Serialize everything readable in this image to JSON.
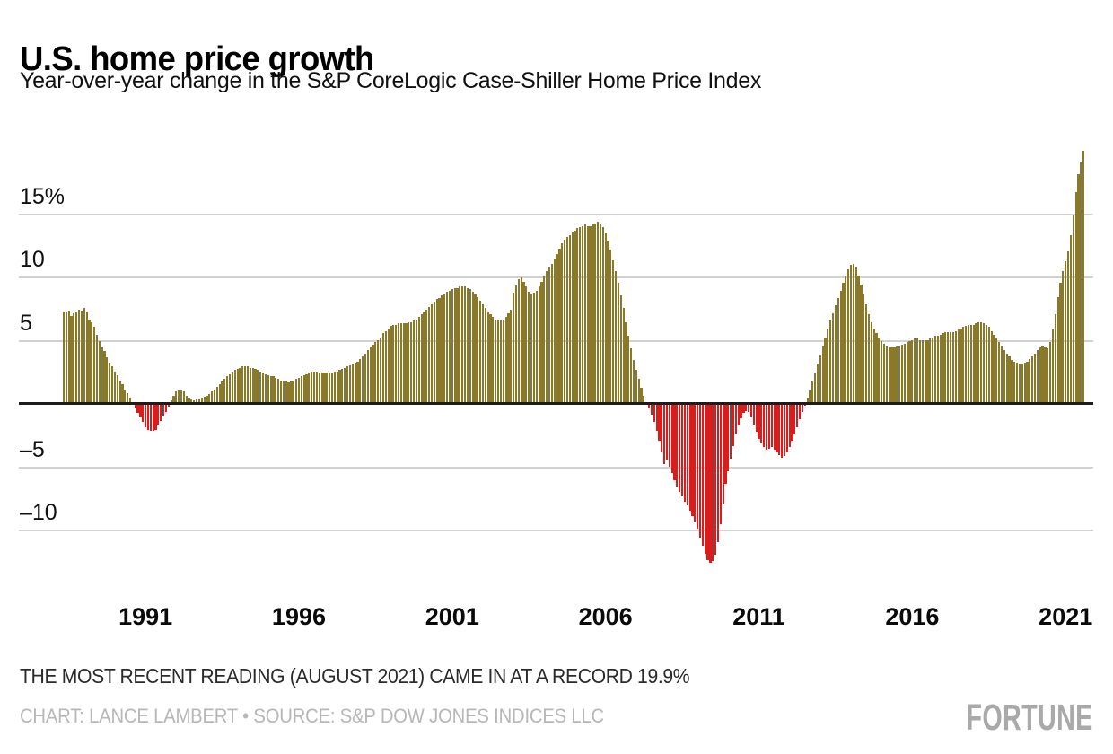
{
  "header": {
    "title": "U.S. home price growth",
    "subtitle": "Year-over-year change in the S&P CoreLogic Case-Shiller Home Price Index"
  },
  "footer": {
    "note": "THE MOST RECENT READING (AUGUST 2021) CAME IN AT A RECORD 19.9%",
    "credit": "CHART: LANCE LAMBERT • SOURCE: S&P DOW JONES INDICES LLC",
    "brand": "FORTUNE"
  },
  "colors": {
    "positive_bar": "#8a782b",
    "negative_bar": "#d91c1c",
    "grid_line": "#d2d2d2",
    "zero_line": "#1c1c1c",
    "axis_text": "#101010",
    "note_text": "#2b2b2b",
    "credit_text": "#b7b7b7",
    "brand_text": "#a9a9a9"
  },
  "chart_data": {
    "type": "bar",
    "title": "U.S. home price growth",
    "subtitle": "Year-over-year change in the S&P CoreLogic Case-Shiller Home Price Index",
    "unit": "percent, year-over-year",
    "frequency": "monthly",
    "start": "1988-05",
    "end": "2021-08",
    "latest_reading": 19.9,
    "grid": true,
    "ylim": [
      -13.5,
      20.5
    ],
    "y_ticks": [
      {
        "label": "15%",
        "value": 15
      },
      {
        "label": "10",
        "value": 10
      },
      {
        "label": "5",
        "value": 5
      },
      {
        "label": "–5",
        "value": -5
      },
      {
        "label": "–10",
        "value": -10
      }
    ],
    "x_ticks": [
      {
        "label": "1991",
        "year": 1991
      },
      {
        "label": "1996",
        "year": 1996
      },
      {
        "label": "2001",
        "year": 2001
      },
      {
        "label": "2006",
        "year": 2006
      },
      {
        "label": "2011",
        "year": 2011
      },
      {
        "label": "2016",
        "year": 2016
      },
      {
        "label": "2021",
        "year": 2021
      }
    ],
    "series": [
      {
        "year": 1988,
        "start_month": 5,
        "values": [
          7.2,
          7.2,
          7.3,
          6.9,
          7.1,
          7.2,
          7.4,
          7.3
        ]
      },
      {
        "year": 1989,
        "start_month": 1,
        "values": [
          7.5,
          7.2,
          6.6,
          6.4,
          6.0,
          5.4,
          4.9,
          4.4,
          4.1,
          3.6,
          3.2,
          2.9
        ]
      },
      {
        "year": 1990,
        "start_month": 1,
        "values": [
          2.5,
          2.2,
          1.8,
          1.5,
          1.1,
          0.8,
          0.4,
          0.1,
          -0.4,
          -0.8,
          -1.1,
          -1.5
        ]
      },
      {
        "year": 1991,
        "start_month": 1,
        "values": [
          -1.9,
          -2.1,
          -2.2,
          -2.2,
          -2.1,
          -1.7,
          -1.4,
          -1.0,
          -0.7,
          -0.3,
          0.2,
          0.6
        ]
      },
      {
        "year": 1992,
        "start_month": 1,
        "values": [
          0.9,
          1.0,
          1.0,
          0.9,
          0.6,
          0.4,
          0.3,
          0.2,
          0.3,
          0.3,
          0.4,
          0.5
        ]
      },
      {
        "year": 1993,
        "start_month": 1,
        "values": [
          0.6,
          0.7,
          0.9,
          1.1,
          1.3,
          1.5,
          1.7,
          1.9,
          2.1,
          2.3,
          2.5,
          2.6
        ]
      },
      {
        "year": 1994,
        "start_month": 1,
        "values": [
          2.7,
          2.8,
          2.9,
          2.9,
          2.9,
          2.8,
          2.8,
          2.7,
          2.6,
          2.5,
          2.4,
          2.3
        ]
      },
      {
        "year": 1995,
        "start_month": 1,
        "values": [
          2.2,
          2.1,
          2.1,
          2.0,
          1.9,
          1.8,
          1.7,
          1.7,
          1.6,
          1.7,
          1.8,
          1.9
        ]
      },
      {
        "year": 1996,
        "start_month": 1,
        "values": [
          2.0,
          2.1,
          2.2,
          2.3,
          2.4,
          2.5,
          2.5,
          2.5,
          2.4,
          2.4,
          2.4,
          2.4
        ]
      },
      {
        "year": 1997,
        "start_month": 1,
        "values": [
          2.4,
          2.4,
          2.5,
          2.5,
          2.6,
          2.7,
          2.8,
          2.9,
          3.0,
          3.1,
          3.2,
          3.3
        ]
      },
      {
        "year": 1998,
        "start_month": 1,
        "values": [
          3.5,
          3.7,
          3.9,
          4.2,
          4.4,
          4.6,
          4.8,
          5.0,
          5.2,
          5.5,
          5.7,
          5.9
        ]
      },
      {
        "year": 1999,
        "start_month": 1,
        "values": [
          6.1,
          6.2,
          6.2,
          6.3,
          6.3,
          6.3,
          6.3,
          6.4,
          6.4,
          6.5,
          6.6,
          6.8
        ]
      },
      {
        "year": 2000,
        "start_month": 1,
        "values": [
          7.0,
          7.2,
          7.4,
          7.6,
          7.8,
          8.0,
          8.2,
          8.3,
          8.5,
          8.6,
          8.8,
          8.9
        ]
      },
      {
        "year": 2001,
        "start_month": 1,
        "values": [
          9.0,
          9.1,
          9.1,
          9.2,
          9.2,
          9.2,
          9.1,
          9.0,
          8.8,
          8.6,
          8.4,
          8.1
        ]
      },
      {
        "year": 2002,
        "start_month": 1,
        "values": [
          7.8,
          7.5,
          7.2,
          7.0,
          6.8,
          6.6,
          6.5,
          6.5,
          6.6,
          6.8,
          7.1,
          7.4
        ]
      },
      {
        "year": 2003,
        "start_month": 1,
        "values": [
          8.7,
          9.3,
          9.8,
          9.9,
          9.6,
          9.2,
          8.8,
          8.6,
          8.7,
          8.9,
          9.2,
          9.6
        ]
      },
      {
        "year": 2004,
        "start_month": 1,
        "values": [
          10.0,
          10.4,
          10.7,
          11.0,
          11.4,
          11.8,
          12.2,
          12.6,
          12.9,
          13.1,
          13.3,
          13.5
        ]
      },
      {
        "year": 2005,
        "start_month": 1,
        "values": [
          13.6,
          13.8,
          13.9,
          14.0,
          14.1,
          14.0,
          14.0,
          14.1,
          14.2,
          14.3,
          14.2,
          13.9
        ]
      },
      {
        "year": 2006,
        "start_month": 1,
        "values": [
          13.4,
          12.8,
          12.1,
          11.3,
          10.4,
          9.5,
          8.5,
          7.5,
          6.4,
          5.3,
          4.3,
          3.4
        ]
      },
      {
        "year": 2007,
        "start_month": 1,
        "values": [
          2.6,
          1.9,
          1.2,
          0.6,
          0.1,
          -0.4,
          -0.9,
          -1.5,
          -2.2,
          -3.0,
          -3.9,
          -4.8
        ]
      },
      {
        "year": 2008,
        "start_month": 1,
        "values": [
          -4.5,
          -5.0,
          -5.5,
          -6.1,
          -6.6,
          -7.0,
          -7.4,
          -7.8,
          -8.1,
          -8.5,
          -8.9,
          -9.4
        ]
      },
      {
        "year": 2009,
        "start_month": 1,
        "values": [
          -9.9,
          -10.6,
          -11.3,
          -11.9,
          -12.4,
          -12.6,
          -12.5,
          -12.0,
          -11.0,
          -9.6,
          -8.0,
          -6.4
        ]
      },
      {
        "year": 2010,
        "start_month": 1,
        "values": [
          -5.4,
          -4.4,
          -3.4,
          -2.5,
          -1.8,
          -1.2,
          -0.8,
          -0.6,
          -0.7,
          -1.1,
          -1.7,
          -2.3
        ]
      },
      {
        "year": 2011,
        "start_month": 1,
        "values": [
          -2.8,
          -3.2,
          -3.5,
          -3.7,
          -3.6,
          -3.5,
          -3.7,
          -3.9,
          -4.1,
          -4.3,
          -4.2,
          -3.9
        ]
      },
      {
        "year": 2012,
        "start_month": 1,
        "values": [
          -3.5,
          -3.0,
          -2.5,
          -1.9,
          -1.3,
          -0.7,
          -0.2,
          0.4,
          1.0,
          1.7,
          2.4,
          3.1
        ]
      },
      {
        "year": 2013,
        "start_month": 1,
        "values": [
          3.8,
          4.5,
          5.2,
          5.9,
          6.5,
          7.1,
          7.7,
          8.3,
          8.9,
          9.5,
          10.1,
          10.6
        ]
      },
      {
        "year": 2014,
        "start_month": 1,
        "values": [
          10.9,
          11.0,
          10.7,
          10.1,
          9.4,
          8.6,
          7.8,
          7.0,
          6.4,
          5.9,
          5.5,
          5.2
        ]
      },
      {
        "year": 2015,
        "start_month": 1,
        "values": [
          4.9,
          4.7,
          4.5,
          4.4,
          4.4,
          4.4,
          4.5,
          4.5,
          4.6,
          4.7,
          4.8,
          4.9
        ]
      },
      {
        "year": 2016,
        "start_month": 1,
        "values": [
          5.0,
          5.1,
          5.1,
          5.0,
          5.0,
          5.0,
          5.0,
          5.1,
          5.2,
          5.3,
          5.3,
          5.4
        ]
      },
      {
        "year": 2017,
        "start_month": 1,
        "values": [
          5.5,
          5.6,
          5.6,
          5.6,
          5.6,
          5.7,
          5.8,
          5.9,
          6.0,
          6.1,
          6.2,
          6.2
        ]
      },
      {
        "year": 2018,
        "start_month": 1,
        "values": [
          6.2,
          6.3,
          6.4,
          6.4,
          6.3,
          6.2,
          6.0,
          5.7,
          5.4,
          5.1,
          4.8,
          4.5
        ]
      },
      {
        "year": 2019,
        "start_month": 1,
        "values": [
          4.2,
          3.9,
          3.7,
          3.4,
          3.3,
          3.2,
          3.1,
          3.1,
          3.2,
          3.3,
          3.5,
          3.7
        ]
      },
      {
        "year": 2020,
        "start_month": 1,
        "values": [
          3.9,
          4.2,
          4.4,
          4.5,
          4.4,
          4.3,
          4.8,
          5.8,
          7.0,
          8.4,
          9.5,
          10.4
        ]
      },
      {
        "year": 2021,
        "start_month": 1,
        "values": [
          11.2,
          12.0,
          13.3,
          14.8,
          16.7,
          18.1,
          19.1,
          19.9
        ]
      }
    ]
  }
}
